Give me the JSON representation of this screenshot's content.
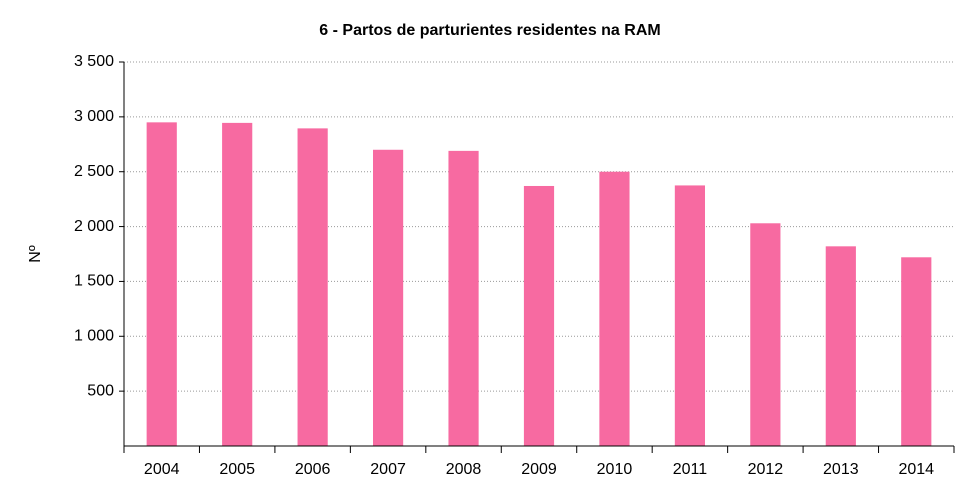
{
  "chart_data": {
    "type": "bar",
    "title": "6 - Partos de parturientes residentes na RAM",
    "y_label": "Nº",
    "categories": [
      "2004",
      "2005",
      "2006",
      "2007",
      "2008",
      "2009",
      "2010",
      "2011",
      "2012",
      "2013",
      "2014"
    ],
    "values": [
      2950,
      2945,
      2895,
      2700,
      2690,
      2370,
      2500,
      2375,
      2030,
      1820,
      1720
    ],
    "color": "#f76aa1",
    "ylim": [
      0,
      3500
    ],
    "yticks": [
      500,
      {
        "value": 1000,
        "label": "1 000"
      },
      {
        "value": 1500,
        "label": "1 500"
      },
      {
        "value": 2000,
        "label": "2 000"
      },
      {
        "value": 2500,
        "label": "2 500"
      },
      {
        "value": 3000,
        "label": "3 000"
      },
      {
        "value": 3500,
        "label": "3 500"
      }
    ],
    "grid": true
  }
}
